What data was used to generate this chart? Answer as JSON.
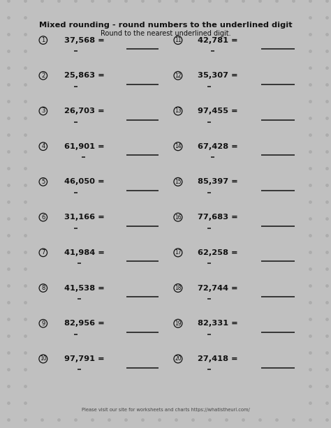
{
  "title": "Mixed rounding - round numbers to the underlined digit",
  "subtitle": "Round to the nearest underlined digit.",
  "footer": "Please visit our site for worksheets and charts https://whatistheurl.com/",
  "bg_outer": "#c0c0c0",
  "bg_inner": "#f2f2ee",
  "dot_color": "#aaaaaa",
  "left_items": [
    {
      "num": 1,
      "text": "37,568",
      "underline_digit_idx": [
        2
      ]
    },
    {
      "num": 2,
      "text": "25,863",
      "underline_digit_idx": [
        2
      ]
    },
    {
      "num": 3,
      "text": "26,703",
      "underline_digit_idx": [
        2
      ]
    },
    {
      "num": 4,
      "text": "61,901",
      "underline_digit_idx": [
        4
      ]
    },
    {
      "num": 5,
      "text": "46,050",
      "underline_digit_idx": [
        2
      ]
    },
    {
      "num": 6,
      "text": "31,166",
      "underline_digit_idx": [
        2
      ]
    },
    {
      "num": 7,
      "text": "41,984",
      "underline_digit_idx": [
        3
      ]
    },
    {
      "num": 8,
      "text": "41,538",
      "underline_digit_idx": [
        3
      ]
    },
    {
      "num": 9,
      "text": "82,956",
      "underline_digit_idx": [
        2
      ]
    },
    {
      "num": 10,
      "text": "97,791",
      "underline_digit_idx": [
        3
      ]
    }
  ],
  "right_items": [
    {
      "num": 11,
      "text": "42,781",
      "underline_digit_idx": [
        3
      ]
    },
    {
      "num": 12,
      "text": "35,307",
      "underline_digit_idx": [
        2
      ]
    },
    {
      "num": 13,
      "text": "97,455",
      "underline_digit_idx": [
        2
      ]
    },
    {
      "num": 14,
      "text": "67,428",
      "underline_digit_idx": [
        3
      ]
    },
    {
      "num": 15,
      "text": "85,397",
      "underline_digit_idx": [
        2
      ]
    },
    {
      "num": 16,
      "text": "77,683",
      "underline_digit_idx": [
        2
      ]
    },
    {
      "num": 17,
      "text": "62,258",
      "underline_digit_idx": [
        2
      ]
    },
    {
      "num": 18,
      "text": "72,744",
      "underline_digit_idx": [
        2
      ]
    },
    {
      "num": 19,
      "text": "82,331",
      "underline_digit_idx": [
        2
      ]
    },
    {
      "num": 20,
      "text": "27,418",
      "underline_digit_idx": [
        2
      ]
    }
  ],
  "figsize": [
    4.74,
    6.13
  ],
  "dpi": 100
}
